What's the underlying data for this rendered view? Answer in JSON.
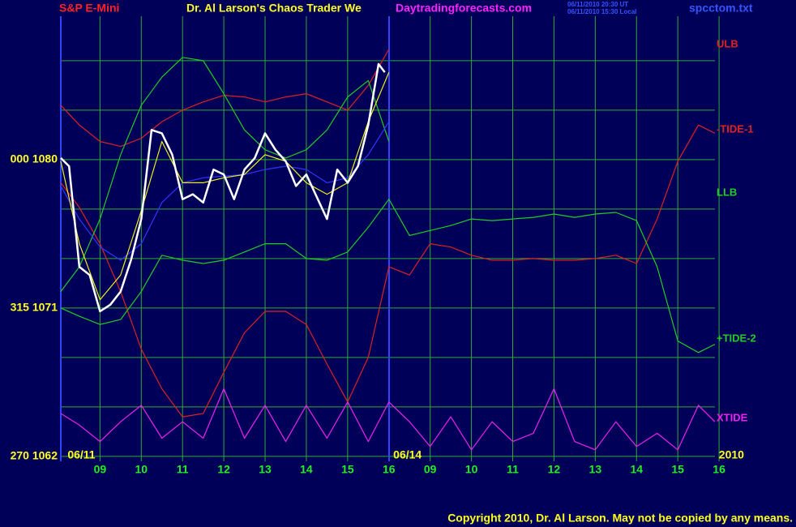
{
  "chart_data": {
    "type": "line",
    "header": {
      "symbol": "S&P E-Mini",
      "title": "Dr. Al Larson's Chaos Trader We",
      "site": "Daytradingforecasts.com",
      "time_ut": "06/11/2010 20:30 UT",
      "time_local": "06/11/2010 15:30 Local",
      "file": "spcctom.txt"
    },
    "copyright": "Copyright 2010, Dr. Al Larson. May not be copied by any means.",
    "date_labels": [
      {
        "value": 0.55,
        "label": "06/11"
      },
      {
        "value": 8.45,
        "label": "06/14"
      },
      {
        "value": 16.3,
        "label": "2010"
      }
    ],
    "xlim": [
      0.05,
      15.9
    ],
    "ylim": [
      1061.7,
      1088.7
    ],
    "xticks": [
      {
        "value": 1,
        "label": "09"
      },
      {
        "value": 2,
        "label": "10"
      },
      {
        "value": 3,
        "label": "11"
      },
      {
        "value": 4,
        "label": "12"
      },
      {
        "value": 5,
        "label": "13"
      },
      {
        "value": 6,
        "label": "14"
      },
      {
        "value": 7,
        "label": "15"
      },
      {
        "value": 8,
        "label": "16"
      },
      {
        "value": 9,
        "label": "09"
      },
      {
        "value": 10,
        "label": "10"
      },
      {
        "value": 11,
        "label": "11"
      },
      {
        "value": 12,
        "label": "12"
      },
      {
        "value": 13,
        "label": "13"
      },
      {
        "value": 14,
        "label": "14"
      },
      {
        "value": 15,
        "label": "15"
      },
      {
        "value": 16,
        "label": "16"
      }
    ],
    "yticks": [
      {
        "value": 1080,
        "label": "000 1080"
      },
      {
        "value": 1071,
        "label": "315 1071"
      },
      {
        "value": 1062,
        "label": "270 1062"
      }
    ],
    "minor_yticks": [
      1065,
      1068,
      1074,
      1077,
      1083,
      1086
    ],
    "grid": true,
    "x": [
      0.05,
      0.5,
      1,
      1.5,
      2,
      2.5,
      3,
      3.5,
      4,
      4.5,
      5,
      5.5,
      6,
      6.5,
      7,
      7.5,
      8,
      8.5,
      9,
      9.5,
      10,
      10.5,
      11,
      11.5,
      12,
      12.5,
      13,
      13.5,
      14,
      14.5,
      15,
      15.5,
      15.9
    ],
    "series": [
      {
        "name": "ULB",
        "color": "#dd2222",
        "values": [
          1083.3,
          1082.1,
          1081.1,
          1080.8,
          1081.3,
          1082.3,
          1083.0,
          1083.5,
          1083.9,
          1083.8,
          1083.5,
          1083.8,
          1084.0,
          1083.5,
          1083.0,
          1084.5,
          1086.7,
          null,
          null,
          null,
          null,
          null,
          null,
          null,
          null,
          null,
          null,
          null,
          null,
          null,
          null,
          null,
          null
        ]
      },
      {
        "name": "-TIDE-1",
        "color": "#dd2222",
        "values": [
          1078.6,
          1077.1,
          1074.9,
          1072.0,
          1068.5,
          1066.1,
          1064.4,
          1064.6,
          1067.1,
          1069.5,
          1070.8,
          1070.8,
          1070.0,
          1067.6,
          1065.3,
          1068.0,
          1073.5,
          1073.0,
          1074.9,
          1074.7,
          1074.2,
          1073.9,
          1073.9,
          1074.0,
          1073.9,
          1073.9,
          1074.0,
          1074.2,
          1073.7,
          1076.4,
          1079.9,
          1082.1,
          1081.6
        ]
      },
      {
        "name": "LLB",
        "color": "#22cc22",
        "values": [
          1072.0,
          1073.5,
          1076.4,
          1080.3,
          1083.3,
          1085.0,
          1086.2,
          1086.0,
          1084.0,
          1081.8,
          1080.6,
          1080.1,
          1080.6,
          1081.8,
          1083.8,
          1084.8,
          1081.1,
          null,
          null,
          null,
          null,
          null,
          null,
          null,
          null,
          null,
          null,
          null,
          null,
          null,
          null,
          null,
          null
        ]
      },
      {
        "name": "+TIDE-2",
        "color": "#22cc22",
        "values": [
          1071.0,
          1070.5,
          1070.0,
          1070.3,
          1072.0,
          1074.2,
          1073.9,
          1073.7,
          1073.9,
          1074.4,
          1074.9,
          1074.9,
          1074.0,
          1073.9,
          1074.4,
          1075.9,
          1077.6,
          1075.4,
          1075.7,
          1076.0,
          1076.4,
          1076.3,
          1076.4,
          1076.5,
          1076.7,
          1076.5,
          1076.7,
          1076.8,
          1076.3,
          1073.5,
          1069.0,
          1068.3,
          1068.8
        ]
      },
      {
        "name": "XTIDE",
        "color": "#ee22ee",
        "values": [
          1064.6,
          1063.9,
          1062.9,
          1064.1,
          1065.1,
          1063.1,
          1064.1,
          1063.1,
          1066.1,
          1063.1,
          1065.1,
          1062.9,
          1065.1,
          1063.1,
          1065.3,
          1062.9,
          1065.3,
          1064.1,
          1062.6,
          1064.4,
          1062.4,
          1064.1,
          1062.9,
          1063.4,
          1066.1,
          1062.9,
          1062.4,
          1064.1,
          1062.6,
          1063.4,
          1062.4,
          1065.1,
          1064.1
        ]
      },
      {
        "color": "#3333ff",
        "values": [
          1078.4,
          1076.4,
          1074.7,
          1073.9,
          1074.9,
          1077.4,
          1078.6,
          1078.9,
          1079.0,
          1079.1,
          1079.4,
          1079.6,
          1079.4,
          1078.6,
          1078.9,
          1080.3,
          1082.3,
          null,
          null,
          null,
          null,
          null,
          null,
          null,
          null,
          null,
          null,
          null,
          null,
          null,
          null,
          null,
          null
        ]
      },
      {
        "color": "#eeee22",
        "values": [
          1079.9,
          1074.9,
          1071.5,
          1073.0,
          1076.9,
          1081.1,
          1078.6,
          1078.6,
          1078.9,
          1079.1,
          1080.3,
          1079.9,
          1078.6,
          1077.9,
          1078.6,
          1082.3,
          1085.3,
          null,
          null,
          null,
          null,
          null,
          null,
          null,
          null,
          null,
          null,
          null,
          null,
          null,
          null,
          null,
          null
        ]
      },
      {
        "color": "#ffffff",
        "x": [
          0.05,
          0.25,
          0.5,
          0.75,
          1,
          1.25,
          1.5,
          1.75,
          2,
          2.25,
          2.5,
          2.75,
          3,
          3.25,
          3.5,
          3.75,
          4,
          4.25,
          4.5,
          4.75,
          5,
          5.25,
          5.5,
          5.75,
          6,
          6.5,
          6.75,
          7,
          7.25,
          7.5,
          7.75,
          7.9
        ],
        "values": [
          1080.1,
          1079.6,
          1073.5,
          1073.0,
          1070.8,
          1071.2,
          1072.0,
          1073.9,
          1076.4,
          1081.8,
          1081.6,
          1080.3,
          1077.6,
          1077.9,
          1077.4,
          1079.4,
          1079.1,
          1077.6,
          1079.4,
          1080.1,
          1081.6,
          1080.6,
          1079.9,
          1078.4,
          1079.1,
          1076.4,
          1079.4,
          1078.6,
          1079.6,
          1082.1,
          1085.8,
          1085.3
        ]
      }
    ]
  }
}
